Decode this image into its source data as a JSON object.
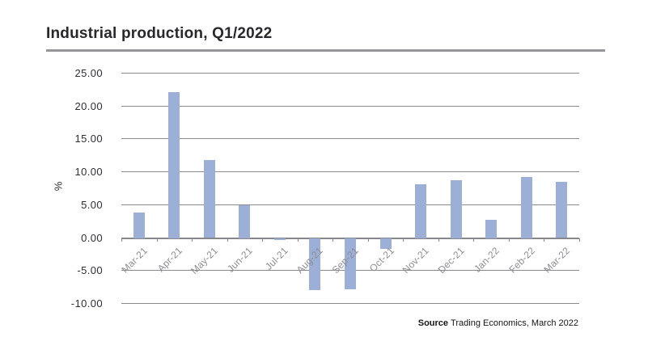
{
  "header": {
    "title": "Industrial production, Q1/2022"
  },
  "chart_data": {
    "type": "bar",
    "title": "Industrial production, Q1/2022",
    "categories": [
      "Mar-21",
      "Apr-21",
      "May-21",
      "Jun-21",
      "Jul-21",
      "Aug-21",
      "Sep-21",
      "Oct-21",
      "Nov-21",
      "Dec-21",
      "Jan-22",
      "Feb-22",
      "Mar-22"
    ],
    "values": [
      3.9,
      22.2,
      11.8,
      5.0,
      -0.3,
      -7.8,
      -7.7,
      -1.6,
      8.2,
      8.8,
      2.8,
      9.3,
      8.5
    ],
    "xlabel": "",
    "ylabel": "%",
    "ylim": [
      -10,
      25
    ],
    "yticks": [
      25,
      20,
      15,
      10,
      5,
      0,
      -5,
      -10
    ],
    "ytick_format": "two-decimals",
    "grid": true,
    "legend": false,
    "bar_color": "#9cafd6",
    "gridline_color": "#8a8a8e"
  },
  "footer": {
    "source_label": "Source",
    "source_text": "Trading Economics, March 2022"
  }
}
